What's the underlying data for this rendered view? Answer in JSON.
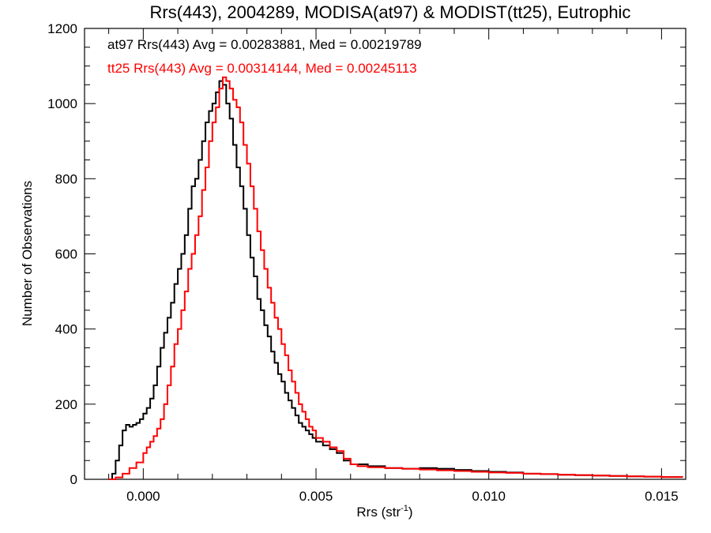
{
  "chart_data": {
    "type": "line",
    "title": "Rrs(443), 2004289, MODISA(at97) & MODIST(tt25), Eutrophic",
    "xlabel_main": "Rrs (str",
    "xlabel_sup": "-1",
    "xlabel_close": ")",
    "ylabel": "Number of Observations",
    "xlim": [
      -0.0017,
      0.0157
    ],
    "ylim": [
      0,
      1200
    ],
    "xticks": [
      0.0,
      0.005,
      0.01,
      0.015
    ],
    "xtick_labels": [
      "0.000",
      "0.005",
      "0.010",
      "0.015"
    ],
    "yticks": [
      0,
      200,
      400,
      600,
      800,
      1000,
      1200
    ],
    "ytick_labels": [
      "0",
      "200",
      "400",
      "600",
      "800",
      "1000",
      "1200"
    ],
    "grid": false,
    "annotations": [
      "at97 Rrs(443) Avg = 0.00283881, Med = 0.00219789",
      "tt25 Rrs(443) Avg = 0.00314144, Med = 0.00245113"
    ],
    "series": [
      {
        "color": "#000000",
        "points": [
          [
            -0.001,
            0
          ],
          [
            -0.0009,
            15
          ],
          [
            -0.0008,
            50
          ],
          [
            -0.0007,
            90
          ],
          [
            -0.0006,
            130
          ],
          [
            -0.0005,
            145
          ],
          [
            -0.0004,
            140
          ],
          [
            -0.0003,
            145
          ],
          [
            -0.0002,
            150
          ],
          [
            -0.0001,
            160
          ],
          [
            0.0,
            175
          ],
          [
            0.0001,
            190
          ],
          [
            0.0002,
            215
          ],
          [
            0.0003,
            250
          ],
          [
            0.0004,
            300
          ],
          [
            0.0005,
            350
          ],
          [
            0.0006,
            390
          ],
          [
            0.0007,
            430
          ],
          [
            0.0008,
            470
          ],
          [
            0.0009,
            520
          ],
          [
            0.001,
            560
          ],
          [
            0.0011,
            600
          ],
          [
            0.0012,
            650
          ],
          [
            0.0013,
            720
          ],
          [
            0.0014,
            780
          ],
          [
            0.0015,
            800
          ],
          [
            0.0016,
            850
          ],
          [
            0.0017,
            900
          ],
          [
            0.0018,
            950
          ],
          [
            0.0019,
            980
          ],
          [
            0.002,
            1000
          ],
          [
            0.0021,
            1030
          ],
          [
            0.0022,
            1060
          ],
          [
            0.0023,
            1050
          ],
          [
            0.0024,
            1000
          ],
          [
            0.0025,
            960
          ],
          [
            0.0026,
            890
          ],
          [
            0.0027,
            830
          ],
          [
            0.0028,
            780
          ],
          [
            0.0029,
            720
          ],
          [
            0.003,
            650
          ],
          [
            0.0031,
            590
          ],
          [
            0.0032,
            540
          ],
          [
            0.0033,
            480
          ],
          [
            0.0034,
            450
          ],
          [
            0.0035,
            410
          ],
          [
            0.0036,
            380
          ],
          [
            0.0037,
            340
          ],
          [
            0.0038,
            310
          ],
          [
            0.0039,
            280
          ],
          [
            0.004,
            260
          ],
          [
            0.0041,
            230
          ],
          [
            0.0042,
            210
          ],
          [
            0.0043,
            190
          ],
          [
            0.0044,
            170
          ],
          [
            0.0045,
            150
          ],
          [
            0.0046,
            140
          ],
          [
            0.0047,
            130
          ],
          [
            0.0048,
            120
          ],
          [
            0.0049,
            110
          ],
          [
            0.005,
            100
          ],
          [
            0.0052,
            90
          ],
          [
            0.0054,
            80
          ],
          [
            0.0056,
            70
          ],
          [
            0.0058,
            50
          ],
          [
            0.006,
            40
          ],
          [
            0.0062,
            40
          ],
          [
            0.0065,
            35
          ],
          [
            0.007,
            30
          ],
          [
            0.0075,
            28
          ],
          [
            0.008,
            30
          ],
          [
            0.0085,
            28
          ],
          [
            0.009,
            25
          ],
          [
            0.0095,
            22
          ],
          [
            0.01,
            20
          ],
          [
            0.0105,
            18
          ],
          [
            0.011,
            15
          ],
          [
            0.0115,
            14
          ],
          [
            0.012,
            12
          ],
          [
            0.0125,
            11
          ],
          [
            0.013,
            10
          ],
          [
            0.0135,
            9
          ],
          [
            0.014,
            8
          ],
          [
            0.0145,
            7
          ],
          [
            0.015,
            6
          ],
          [
            0.0156,
            5
          ]
        ]
      },
      {
        "color": "#ff0000",
        "points": [
          [
            -0.001,
            0
          ],
          [
            -0.0008,
            5
          ],
          [
            -0.0006,
            15
          ],
          [
            -0.0004,
            30
          ],
          [
            -0.0002,
            45
          ],
          [
            0.0,
            70
          ],
          [
            0.0001,
            85
          ],
          [
            0.0002,
            100
          ],
          [
            0.0003,
            115
          ],
          [
            0.0004,
            135
          ],
          [
            0.0005,
            160
          ],
          [
            0.0006,
            200
          ],
          [
            0.0007,
            250
          ],
          [
            0.0008,
            300
          ],
          [
            0.0009,
            360
          ],
          [
            0.001,
            400
          ],
          [
            0.0011,
            450
          ],
          [
            0.0012,
            500
          ],
          [
            0.0013,
            560
          ],
          [
            0.0014,
            600
          ],
          [
            0.0015,
            650
          ],
          [
            0.0016,
            700
          ],
          [
            0.0017,
            770
          ],
          [
            0.0018,
            830
          ],
          [
            0.0019,
            900
          ],
          [
            0.002,
            950
          ],
          [
            0.0021,
            990
          ],
          [
            0.0022,
            1040
          ],
          [
            0.0023,
            1070
          ],
          [
            0.0024,
            1060
          ],
          [
            0.0025,
            1040
          ],
          [
            0.0026,
            1010
          ],
          [
            0.0027,
            990
          ],
          [
            0.0028,
            950
          ],
          [
            0.0029,
            890
          ],
          [
            0.003,
            840
          ],
          [
            0.0031,
            780
          ],
          [
            0.0032,
            720
          ],
          [
            0.0033,
            660
          ],
          [
            0.0034,
            610
          ],
          [
            0.0035,
            560
          ],
          [
            0.0036,
            510
          ],
          [
            0.0037,
            470
          ],
          [
            0.0038,
            430
          ],
          [
            0.0039,
            400
          ],
          [
            0.004,
            360
          ],
          [
            0.0041,
            330
          ],
          [
            0.0042,
            290
          ],
          [
            0.0043,
            260
          ],
          [
            0.0044,
            230
          ],
          [
            0.0045,
            200
          ],
          [
            0.0046,
            180
          ],
          [
            0.0047,
            160
          ],
          [
            0.0048,
            140
          ],
          [
            0.0049,
            130
          ],
          [
            0.005,
            110
          ],
          [
            0.0052,
            100
          ],
          [
            0.0054,
            85
          ],
          [
            0.0056,
            75
          ],
          [
            0.0058,
            55
          ],
          [
            0.006,
            40
          ],
          [
            0.0062,
            35
          ],
          [
            0.0065,
            32
          ],
          [
            0.007,
            30
          ],
          [
            0.0075,
            28
          ],
          [
            0.008,
            26
          ],
          [
            0.0085,
            24
          ],
          [
            0.009,
            22
          ],
          [
            0.0095,
            20
          ],
          [
            0.01,
            18
          ],
          [
            0.0105,
            17
          ],
          [
            0.011,
            15
          ],
          [
            0.0115,
            14
          ],
          [
            0.012,
            12
          ],
          [
            0.0125,
            11
          ],
          [
            0.013,
            10
          ],
          [
            0.0135,
            9
          ],
          [
            0.014,
            8
          ],
          [
            0.0145,
            7
          ],
          [
            0.015,
            6
          ],
          [
            0.0156,
            5
          ]
        ]
      }
    ]
  }
}
